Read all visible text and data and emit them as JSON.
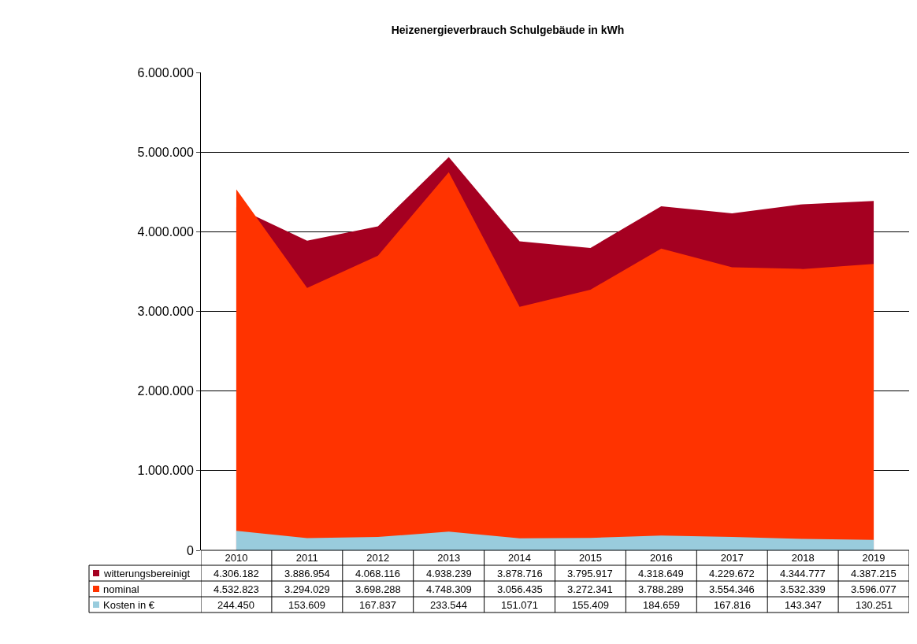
{
  "chart_data": {
    "type": "area",
    "title": "Heizenergieverbrauch Schulgebäude in kWh",
    "categories": [
      "2010",
      "2011",
      "2012",
      "2013",
      "2014",
      "2015",
      "2016",
      "2017",
      "2018",
      "2019"
    ],
    "series": [
      {
        "name": "witterungsbereinigt",
        "color": "#a50021",
        "values": [
          4306182,
          3886954,
          4068116,
          4938239,
          3878716,
          3795917,
          4318649,
          4229672,
          4344777,
          4387215
        ],
        "value_labels": [
          "4.306.182",
          "3.886.954",
          "4.068.116",
          "4.938.239",
          "3.878.716",
          "3.795.917",
          "4.318.649",
          "4.229.672",
          "4.344.777",
          "4.387.215"
        ]
      },
      {
        "name": "nominal",
        "color": "#ff3300",
        "values": [
          4532823,
          3294029,
          3698288,
          4748309,
          3056435,
          3272341,
          3788289,
          3554346,
          3532339,
          3596077
        ],
        "value_labels": [
          "4.532.823",
          "3.294.029",
          "3.698.288",
          "4.748.309",
          "3.056.435",
          "3.272.341",
          "3.788.289",
          "3.554.346",
          "3.532.339",
          "3.596.077"
        ]
      },
      {
        "name": "Kosten in €",
        "color": "#99ccdd",
        "values": [
          244450,
          153609,
          167837,
          233544,
          151071,
          155409,
          184659,
          167816,
          143347,
          130251
        ],
        "value_labels": [
          "244.450",
          "153.609",
          "167.837",
          "233.544",
          "151.071",
          "155.409",
          "184.659",
          "167.816",
          "143.347",
          "130.251"
        ]
      }
    ],
    "ylim": [
      0,
      6000000
    ],
    "yticks": [
      0,
      {
        "value": 1000000,
        "label": "1.000.000"
      },
      {
        "value": 2000000,
        "label": "2.000.000"
      },
      {
        "value": 3000000,
        "label": "3.000.000"
      },
      {
        "value": 4000000,
        "label": "4.000.000"
      },
      {
        "value": 5000000,
        "label": "5.000.000"
      },
      {
        "value": 6000000,
        "label": "6.000.000"
      }
    ],
    "grid": "y",
    "legend": "bottom left"
  }
}
